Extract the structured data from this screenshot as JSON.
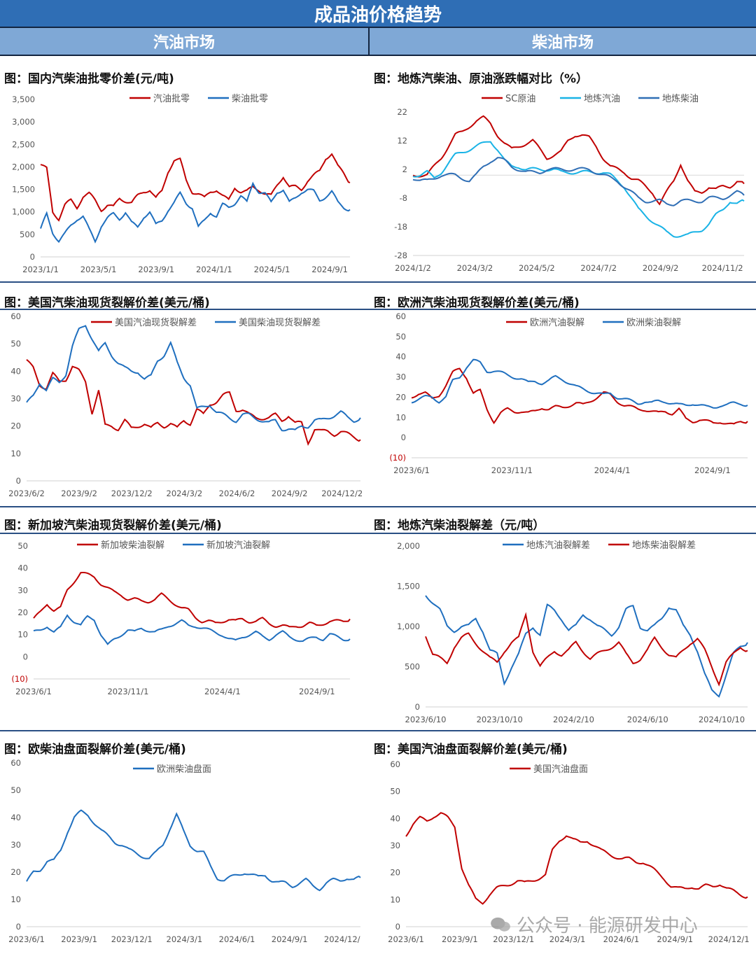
{
  "page_title": "成品油价格趋势",
  "columns": {
    "left": "汽油市场",
    "right": "柴油市场"
  },
  "watermark": "公众号 · 能源研发中心",
  "colors": {
    "red": "#c00000",
    "blue": "#1f6fbf",
    "cyan": "#19b3e6",
    "navy": "#2f6eb5"
  },
  "chart_data": [
    {
      "id": "c1",
      "type": "line",
      "title": "图：国内汽柴油批零价差(元/吨)",
      "x_ticks": [
        "2023/1/1",
        "2023/5/1",
        "2023/9/1",
        "2024/1/1",
        "2024/5/1",
        "2024/9/1"
      ],
      "y_ticks": [
        "3,500",
        "3,000",
        "2,500",
        "2,000",
        "1,500",
        "1,000",
        "500",
        "0"
      ],
      "ylim": [
        0,
        3500
      ],
      "legend_position": "top",
      "series": [
        {
          "name": "汽油批零",
          "color": "#c00000",
          "values": [
            2050,
            1950,
            1000,
            850,
            1150,
            1250,
            1100,
            1350,
            1400,
            1250,
            1050,
            1150,
            1100,
            1300,
            1250,
            1200,
            1350,
            1450,
            1500,
            1300,
            1450,
            1900,
            2150,
            2150,
            1700,
            1450,
            1400,
            1300,
            1450,
            1500,
            1350,
            1250,
            1550,
            1450,
            1450,
            1550,
            1500,
            1400,
            1350,
            1600,
            1800,
            1550,
            1550,
            1500,
            1700,
            1800,
            1900,
            2200,
            2300,
            2000,
            1850,
            1650
          ]
        },
        {
          "name": "柴油批零",
          "color": "#1f6fbf",
          "values": [
            600,
            950,
            550,
            350,
            500,
            700,
            850,
            900,
            600,
            350,
            700,
            850,
            950,
            850,
            1000,
            750,
            650,
            900,
            1000,
            700,
            800,
            1050,
            1200,
            1400,
            1200,
            1100,
            650,
            800,
            1000,
            900,
            1150,
            1100,
            1200,
            1350,
            1200,
            1650,
            1450,
            1400,
            1200,
            1450,
            1500,
            1200,
            1300,
            1450,
            1500,
            1450,
            1250,
            1350,
            1450,
            1200,
            1100,
            1050
          ]
        }
      ]
    },
    {
      "id": "c2",
      "type": "line",
      "title": "图：地炼汽柴油、原油涨跌幅对比（%）",
      "x_ticks": [
        "2024/1/2",
        "2024/3/2",
        "2024/5/2",
        "2024/7/2",
        "2024/9/2",
        "2024/11/2"
      ],
      "y_ticks": [
        "22",
        "12",
        "2",
        "-8",
        "-18",
        "-28"
      ],
      "ylim": [
        -28,
        22
      ],
      "legend_position": "top",
      "series": [
        {
          "name": "SC原油",
          "color": "#c00000",
          "values": [
            0,
            0,
            0,
            3,
            6,
            10,
            14,
            15,
            17,
            19,
            20,
            18,
            14,
            11,
            9,
            10,
            11,
            12,
            9,
            6,
            7,
            8,
            12,
            14,
            14,
            13,
            10,
            6,
            3,
            2,
            1,
            -1,
            -2,
            -4,
            -6,
            -10,
            -6,
            -2,
            4,
            -2,
            -6,
            -6,
            -4,
            -5,
            -4,
            -4,
            -2,
            -3
          ]
        },
        {
          "name": "地炼汽油",
          "color": "#19b3e6",
          "values": [
            0,
            0,
            1,
            -1,
            1,
            4,
            7,
            8,
            9,
            10,
            11,
            12,
            9,
            5,
            3,
            3,
            2,
            2,
            2,
            2,
            2,
            1,
            1,
            1,
            1,
            1,
            1,
            1,
            0,
            -2,
            -4,
            -8,
            -12,
            -14,
            -16,
            -18,
            -20,
            -21,
            -21,
            -21,
            -20,
            -19,
            -17,
            -14,
            -12,
            -9,
            -10,
            -9
          ]
        },
        {
          "name": "地炼柴油",
          "color": "#2f6eb5",
          "values": [
            -1,
            -2,
            -2,
            -1,
            0,
            0,
            0,
            -1,
            -2,
            0,
            3,
            5,
            6,
            5,
            3,
            2,
            1,
            1,
            1,
            2,
            2,
            2,
            2,
            2,
            2,
            2,
            1,
            0,
            -1,
            -2,
            -4,
            -6,
            -8,
            -9,
            -9,
            -9,
            -10,
            -10,
            -9,
            -9,
            -9,
            -9,
            -8,
            -8,
            -8,
            -7,
            -6,
            -7
          ]
        }
      ]
    },
    {
      "id": "c3",
      "type": "line",
      "title": "图：美国汽柴油现货裂解价差(美元/桶)",
      "x_ticks": [
        "2023/6/2",
        "2023/9/2",
        "2023/12/2",
        "2024/3/2",
        "2024/6/2",
        "2024/9/2",
        "2024/12/2"
      ],
      "y_ticks": [
        "60",
        "50",
        "40",
        "30",
        "20",
        "10",
        "0"
      ],
      "ylim": [
        0,
        60
      ],
      "legend_position": "top",
      "series": [
        {
          "name": "美国汽油现货裂解差",
          "color": "#c00000",
          "values": [
            44,
            41,
            35,
            34,
            39,
            36,
            37,
            42,
            40,
            36,
            25,
            33,
            20,
            20,
            19,
            22,
            19,
            20,
            21,
            19,
            21,
            20,
            21,
            19,
            22,
            21,
            26,
            24,
            28,
            29,
            31,
            32,
            26,
            26,
            24,
            23,
            23,
            23,
            24,
            22,
            24,
            21,
            21,
            14,
            19,
            18,
            18,
            17,
            18,
            17,
            16,
            15
          ]
        },
        {
          "name": "美国柴油现货裂解差",
          "color": "#1f6fbf",
          "values": [
            28,
            31,
            36,
            33,
            37,
            36,
            39,
            49,
            55,
            57,
            52,
            47,
            50,
            46,
            43,
            41,
            40,
            40,
            37,
            38,
            44,
            46,
            50,
            43,
            38,
            35,
            26,
            27,
            28,
            25,
            24,
            23,
            22,
            24,
            24,
            23,
            22,
            21,
            22,
            19,
            19,
            18,
            20,
            20,
            22,
            22,
            23,
            24,
            25,
            23,
            22,
            23
          ]
        }
      ]
    },
    {
      "id": "c4",
      "type": "line",
      "title": "图：欧洲汽柴油现货裂解价差(美元/桶)",
      "x_ticks": [
        "2023/6/1",
        "2023/11/1",
        "2024/4/1",
        "2024/9/1"
      ],
      "y_ticks": [
        "60",
        "50",
        "40",
        "30",
        "20",
        "10",
        "0",
        "(10)"
      ],
      "ylim": [
        -10,
        60
      ],
      "legend_position": "top",
      "series": [
        {
          "name": "欧洲汽油裂解",
          "color": "#c00000",
          "values": [
            20,
            22,
            22,
            19,
            21,
            26,
            32,
            34,
            30,
            22,
            23,
            14,
            8,
            12,
            14,
            13,
            13,
            12,
            13,
            15,
            14,
            15,
            15,
            16,
            17,
            16,
            18,
            20,
            22,
            21,
            18,
            16,
            15,
            14,
            14,
            13,
            12,
            13,
            12,
            14,
            9,
            8,
            9,
            8,
            7,
            8,
            7,
            6,
            8,
            8
          ]
        },
        {
          "name": "欧洲柴油裂解",
          "color": "#1f6fbf",
          "values": [
            18,
            19,
            20,
            20,
            18,
            20,
            28,
            30,
            35,
            38,
            37,
            33,
            33,
            32,
            31,
            30,
            29,
            27,
            28,
            27,
            28,
            30,
            29,
            27,
            25,
            24,
            23,
            22,
            21,
            22,
            20,
            19,
            18,
            17,
            18,
            17,
            18,
            18,
            17,
            16,
            16,
            17,
            16,
            15,
            15,
            16,
            16,
            17,
            17,
            16
          ]
        }
      ]
    },
    {
      "id": "c5",
      "type": "line",
      "title": "图：新加坡汽柴油现货裂解价差(美元/桶)",
      "x_ticks": [
        "2023/6/1",
        "2023/11/1",
        "2024/4/1",
        "2024/9/1"
      ],
      "y_ticks": [
        "50",
        "40",
        "30",
        "20",
        "10",
        "0",
        "(10)"
      ],
      "ylim": [
        -10,
        50
      ],
      "legend_position": "top",
      "series": [
        {
          "name": "新加坡柴油裂解",
          "color": "#c00000",
          "values": [
            17,
            20,
            24,
            21,
            22,
            30,
            34,
            38,
            37,
            36,
            33,
            31,
            29,
            28,
            26,
            26,
            25,
            25,
            26,
            28,
            26,
            24,
            22,
            21,
            18,
            16,
            16,
            15,
            16,
            17,
            16,
            17,
            16,
            16,
            17,
            15,
            14,
            14,
            13,
            14,
            14,
            15,
            14,
            15,
            16,
            16,
            16,
            17
          ]
        },
        {
          "name": "新加坡汽油裂解",
          "color": "#1f6fbf",
          "values": [
            11,
            12,
            14,
            11,
            13,
            19,
            16,
            14,
            18,
            17,
            10,
            5,
            8,
            10,
            12,
            11,
            13,
            12,
            11,
            12,
            14,
            15,
            16,
            14,
            14,
            13,
            12,
            11,
            10,
            8,
            7,
            9,
            10,
            11,
            9,
            8,
            10,
            11,
            9,
            8,
            7,
            8,
            9,
            8,
            10,
            9,
            8,
            8
          ]
        }
      ]
    },
    {
      "id": "c6",
      "type": "line",
      "title": "图：地炼汽柴油裂解差（元/吨）",
      "x_ticks": [
        "2023/6/10",
        "2023/10/10",
        "2024/2/10",
        "2024/6/10",
        "2024/10/10"
      ],
      "y_ticks": [
        "2,000",
        "1,500",
        "1,000",
        "500",
        "0"
      ],
      "ylim": [
        0,
        2000
      ],
      "legend_position": "top",
      "series": [
        {
          "name": "地炼汽油裂解差",
          "color": "#1f6fbf",
          "values": [
            1400,
            1300,
            1200,
            1000,
            950,
            1000,
            1000,
            1100,
            950,
            700,
            650,
            300,
            500,
            650,
            900,
            1000,
            900,
            1250,
            1200,
            1100,
            950,
            1000,
            1150,
            1100,
            1000,
            950,
            900,
            1000,
            1200,
            1250,
            1000,
            950,
            1000,
            1100,
            1250,
            1200,
            1000,
            900,
            700,
            400,
            200,
            150,
            400,
            650,
            750,
            800
          ]
        },
        {
          "name": "地炼柴油裂解差",
          "color": "#c00000",
          "values": [
            900,
            650,
            600,
            550,
            750,
            850,
            900,
            800,
            700,
            600,
            550,
            700,
            800,
            850,
            1150,
            700,
            500,
            600,
            700,
            650,
            700,
            800,
            700,
            600,
            650,
            700,
            750,
            800,
            650,
            550,
            600,
            700,
            850,
            750,
            650,
            600,
            700,
            800,
            850,
            700,
            500,
            300,
            550,
            650,
            750,
            700
          ]
        }
      ]
    },
    {
      "id": "c7",
      "type": "line",
      "title": "图：欧柴油盘面裂解价差(美元/桶)",
      "x_ticks": [
        "2023/6/1",
        "2023/9/1",
        "2023/12/1",
        "2024/3/1",
        "2024/6/1",
        "2024/9/1",
        "2024/12/"
      ],
      "y_ticks": [
        "60",
        "50",
        "40",
        "30",
        "20",
        "10",
        "0"
      ],
      "ylim": [
        0,
        60
      ],
      "legend_position": "top",
      "series": [
        {
          "name": "欧洲柴油盘面",
          "color": "#1f6fbf",
          "values": [
            16,
            20,
            21,
            24,
            24,
            28,
            35,
            40,
            42,
            41,
            38,
            35,
            33,
            31,
            30,
            28,
            27,
            26,
            25,
            27,
            30,
            36,
            41,
            35,
            30,
            28,
            27,
            22,
            18,
            17,
            18,
            19,
            20,
            19,
            18,
            19,
            17,
            16,
            16,
            15,
            16,
            17,
            15,
            14,
            16,
            17,
            17,
            18,
            17,
            18
          ]
        }
      ]
    },
    {
      "id": "c8",
      "type": "line",
      "title": "图：美国汽油盘面裂解价差(美元/桶)",
      "x_ticks": [
        "2023/6/1",
        "2023/9/1",
        "2023/12/1",
        "2024/3/1",
        "2024/6/1",
        "2024/9/1",
        "2024/12/1"
      ],
      "y_ticks": [
        "60",
        "50",
        "40",
        "30",
        "20",
        "10",
        "0"
      ],
      "ylim": [
        0,
        60
      ],
      "legend_position": "top",
      "series": [
        {
          "name": "美国汽油盘面",
          "color": "#c00000",
          "values": [
            34,
            38,
            40,
            39,
            41,
            42,
            40,
            37,
            22,
            15,
            10,
            9,
            12,
            14,
            15,
            16,
            17,
            16,
            17,
            18,
            19,
            28,
            32,
            34,
            32,
            31,
            32,
            30,
            28,
            27,
            26,
            25,
            25,
            24,
            24,
            22,
            20,
            18,
            15,
            14,
            14,
            15,
            14,
            15,
            15,
            16,
            14,
            13,
            12,
            11
          ]
        }
      ]
    }
  ]
}
